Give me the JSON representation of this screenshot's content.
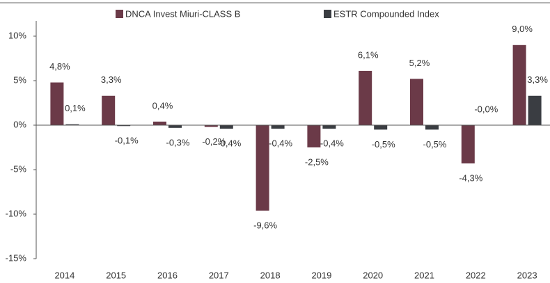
{
  "chart_data": {
    "type": "bar",
    "categories": [
      "2014",
      "2015",
      "2016",
      "2017",
      "2018",
      "2019",
      "2020",
      "2021",
      "2022",
      "2023"
    ],
    "series": [
      {
        "name": "DNCA Invest Miuri-CLASS B",
        "color": "#6b3a48",
        "values": [
          4.8,
          3.3,
          0.4,
          -0.2,
          -9.6,
          -2.5,
          6.1,
          5.2,
          -4.3,
          9.0
        ],
        "value_labels": [
          "4,8%",
          "3,3%",
          "0,4%",
          "-0,2%",
          "-9,6%",
          "-2,5%",
          "6,1%",
          "5,2%",
          "-4,3%",
          "9,0%"
        ]
      },
      {
        "name": "ESTR Compounded Index",
        "color": "#3a3d42",
        "values": [
          0.1,
          -0.1,
          -0.3,
          -0.4,
          -0.4,
          -0.4,
          -0.5,
          -0.5,
          -0.0,
          3.3
        ],
        "value_labels": [
          "0,1%",
          "-0,1%",
          "-0,3%",
          "-0,4%",
          "-0,4%",
          "-0,4%",
          "-0,5%",
          "-0,5%",
          "-0,0%",
          "3,3%"
        ]
      }
    ],
    "ylim": [
      -15,
      10
    ],
    "yticks": [
      {
        "value": -15,
        "label": "-15%"
      },
      {
        "value": -10,
        "label": "-10%"
      },
      {
        "value": -5,
        "label": "-5%"
      },
      {
        "value": 0,
        "label": "0%"
      },
      {
        "value": 5,
        "label": "5%"
      },
      {
        "value": 10,
        "label": "10%"
      }
    ]
  }
}
